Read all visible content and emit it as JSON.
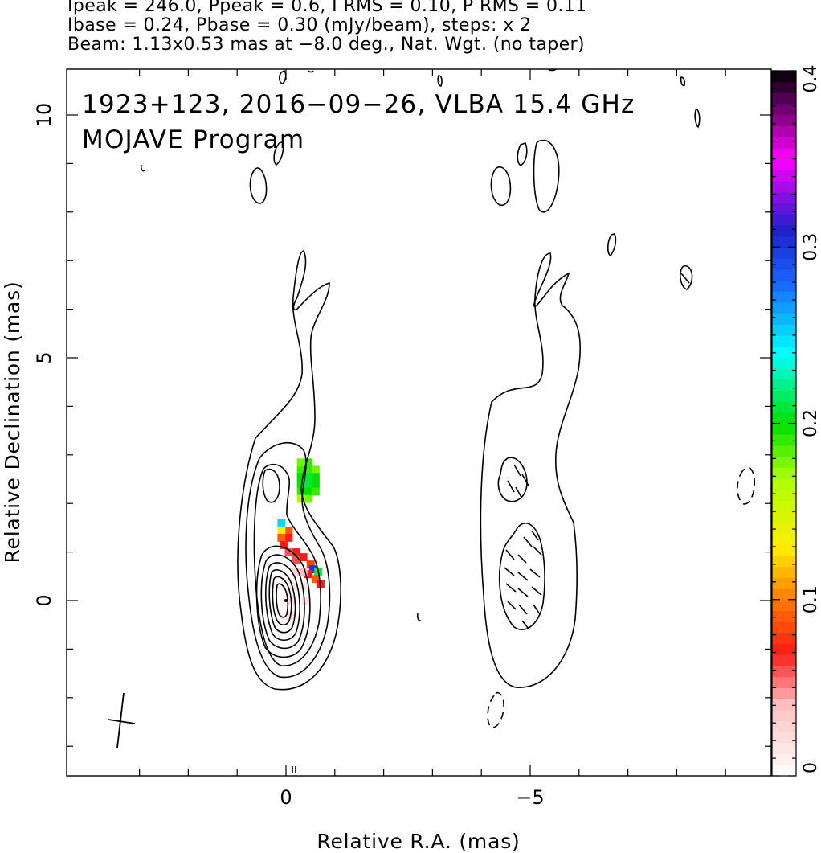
{
  "header": {
    "line1": "Ipeak = 246.0, Ppeak = 0.6, I RMS = 0.10, P RMS = 0.11",
    "line2": "Ibase = 0.24, Pbase = 0.30 (mJy/beam), steps: x 2",
    "line3": "Beam: 1.13x0.53 mas at −8.0 deg., Nat. Wgt. (no taper)"
  },
  "annotations": {
    "source_line": "1923+123, 2016−09−26, VLBA 15.4 GHz",
    "program_line": "MOJAVE Program"
  },
  "colors": {
    "contour": "#000000",
    "background": "#ffffff"
  },
  "chart_data": {
    "type": "heatmap",
    "title": "",
    "xlabel": "Relative R.A. (mas)",
    "ylabel": "Relative Declination (mas)",
    "xlim": [
      4,
      -10.5
    ],
    "ylim": [
      -3.6,
      11
    ],
    "x_ticks": [
      0,
      -5
    ],
    "x_tick_labels": [
      "0",
      "−5"
    ],
    "y_ticks": [
      0,
      5,
      10
    ],
    "y_tick_labels": [
      "0",
      "5",
      "10"
    ],
    "colorbar": {
      "range": [
        0,
        0.4
      ],
      "ticks": [
        0,
        0.1,
        0.2,
        0.3,
        0.4
      ],
      "tick_labels": [
        "0",
        "0.1",
        "0.2",
        "0.3",
        "0.4"
      ],
      "label": "",
      "stops": [
        {
          "v": 0.0,
          "c": "#ffffff"
        },
        {
          "v": 0.04,
          "c": "#ffc0c0"
        },
        {
          "v": 0.07,
          "c": "#ff1a1a"
        },
        {
          "v": 0.1,
          "c": "#ff7a00"
        },
        {
          "v": 0.13,
          "c": "#ffee00"
        },
        {
          "v": 0.17,
          "c": "#a8ff00"
        },
        {
          "v": 0.2,
          "c": "#00e000"
        },
        {
          "v": 0.24,
          "c": "#00ffff"
        },
        {
          "v": 0.28,
          "c": "#1866ff"
        },
        {
          "v": 0.31,
          "c": "#2020c8"
        },
        {
          "v": 0.35,
          "c": "#ff00ff"
        },
        {
          "v": 0.4,
          "c": "#000000"
        }
      ]
    },
    "core_position": [
      0,
      0
    ],
    "beam": {
      "major_mas": 1.13,
      "minor_mas": 0.53,
      "pa_deg": -8.0
    },
    "contour_levels_mJy_per_beam": [
      0.24,
      0.48,
      0.96,
      1.92,
      3.84,
      7.68,
      15.36,
      30.72,
      61.44,
      122.88
    ],
    "polarization_pixels": [
      {
        "x": -0.3,
        "y": 2.7,
        "v": 0.19
      },
      {
        "x": -0.45,
        "y": 2.7,
        "v": 0.19
      },
      {
        "x": -0.6,
        "y": 2.7,
        "v": 0.18
      },
      {
        "x": -0.3,
        "y": 2.55,
        "v": 0.2
      },
      {
        "x": -0.45,
        "y": 2.55,
        "v": 0.21
      },
      {
        "x": -0.6,
        "y": 2.55,
        "v": 0.2
      },
      {
        "x": -0.3,
        "y": 2.4,
        "v": 0.2
      },
      {
        "x": -0.45,
        "y": 2.4,
        "v": 0.21
      },
      {
        "x": -0.6,
        "y": 2.4,
        "v": 0.2
      },
      {
        "x": -0.3,
        "y": 2.25,
        "v": 0.19
      },
      {
        "x": -0.45,
        "y": 2.25,
        "v": 0.2
      },
      {
        "x": -0.6,
        "y": 2.25,
        "v": 0.19
      },
      {
        "x": -0.45,
        "y": 2.85,
        "v": 0.19
      },
      {
        "x": -0.3,
        "y": 2.85,
        "v": 0.18
      },
      {
        "x": -0.45,
        "y": 2.1,
        "v": 0.18
      },
      {
        "x": -0.3,
        "y": 2.1,
        "v": 0.17
      },
      {
        "x": 0.1,
        "y": 1.6,
        "v": 0.25
      },
      {
        "x": -0.05,
        "y": 1.45,
        "v": 0.09
      },
      {
        "x": 0.1,
        "y": 1.45,
        "v": 0.13
      },
      {
        "x": -0.05,
        "y": 1.3,
        "v": 0.07
      },
      {
        "x": 0.1,
        "y": 1.3,
        "v": 0.09
      },
      {
        "x": 0.05,
        "y": 1.15,
        "v": 0.07
      },
      {
        "x": -0.2,
        "y": 1.0,
        "v": 0.07
      },
      {
        "x": -0.05,
        "y": 1.0,
        "v": 0.06
      },
      {
        "x": -0.35,
        "y": 0.9,
        "v": 0.07
      },
      {
        "x": -0.2,
        "y": 0.85,
        "v": 0.06
      },
      {
        "x": -0.5,
        "y": 0.75,
        "v": 0.08
      },
      {
        "x": -0.55,
        "y": 0.65,
        "v": 0.3
      },
      {
        "x": -0.65,
        "y": 0.6,
        "v": 0.21
      },
      {
        "x": -0.45,
        "y": 0.55,
        "v": 0.07
      },
      {
        "x": -0.6,
        "y": 0.45,
        "v": 0.09
      },
      {
        "x": -0.7,
        "y": 0.35,
        "v": 0.07
      },
      {
        "x": -0.35,
        "y": 0.6,
        "v": 0.04
      },
      {
        "x": -0.2,
        "y": 0.6,
        "v": 0.03
      },
      {
        "x": -0.35,
        "y": 0.3,
        "v": 0.02
      },
      {
        "x": -0.15,
        "y": 0.3,
        "v": 0.02
      },
      {
        "x": -0.1,
        "y": 0.0,
        "v": 0.02
      },
      {
        "x": 0.05,
        "y": 0.0,
        "v": 0.01
      },
      {
        "x": -0.1,
        "y": -0.3,
        "v": 0.02
      },
      {
        "x": 0.05,
        "y": -0.3,
        "v": 0.01
      },
      {
        "x": 0.15,
        "y": 0.3,
        "v": 0.01
      },
      {
        "x": -0.4,
        "y": 0.0,
        "v": 0.02
      }
    ]
  }
}
